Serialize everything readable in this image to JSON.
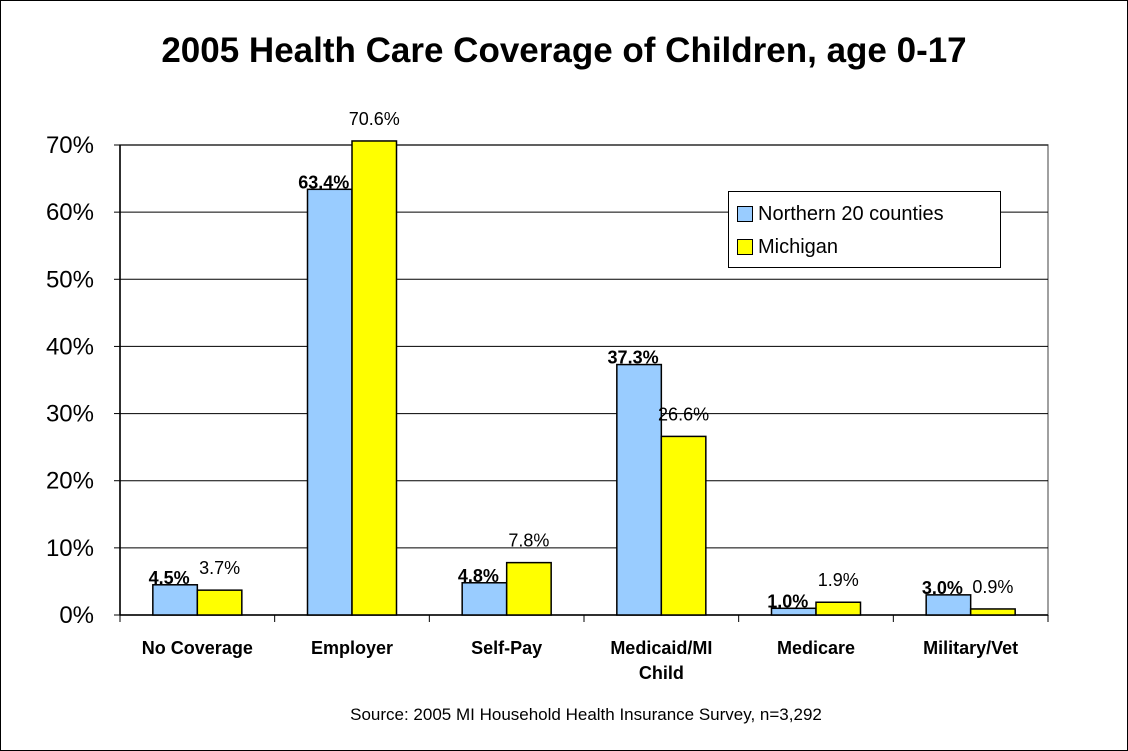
{
  "chart_data": {
    "type": "bar",
    "title": "2005 Health Care Coverage of Children, age 0-17",
    "source": "Source: 2005 MI Household Health Insurance Survey, n=3,292",
    "categories": [
      [
        "No Coverage"
      ],
      [
        "Employer"
      ],
      [
        "Self-Pay"
      ],
      [
        "Medicaid/MI",
        "Child"
      ],
      [
        "Medicare"
      ],
      [
        "Military/Vet"
      ]
    ],
    "series": [
      {
        "name": "Northern 20 counties",
        "color": "#99ccff",
        "values": [
          4.5,
          63.4,
          4.8,
          37.3,
          1.0,
          3.0
        ],
        "labels": [
          "4.5%",
          "63.4%",
          "4.8%",
          "37.3%",
          "1.0%",
          "3.0%"
        ],
        "label_style": "bold"
      },
      {
        "name": "Michigan",
        "color": "#ffff00",
        "values": [
          3.7,
          70.6,
          7.8,
          26.6,
          1.9,
          0.9
        ],
        "labels": [
          "3.7%",
          "70.6%",
          "7.8%",
          "26.6%",
          "1.9%",
          "0.9%"
        ],
        "label_style": "normal"
      }
    ],
    "ylim": [
      0,
      70
    ],
    "yticks": [
      "0%",
      "10%",
      "20%",
      "30%",
      "40%",
      "50%",
      "60%",
      "70%"
    ],
    "ytick_values": [
      0,
      10,
      20,
      30,
      40,
      50,
      60,
      70
    ],
    "grid": true,
    "legend_position": "top-right"
  }
}
